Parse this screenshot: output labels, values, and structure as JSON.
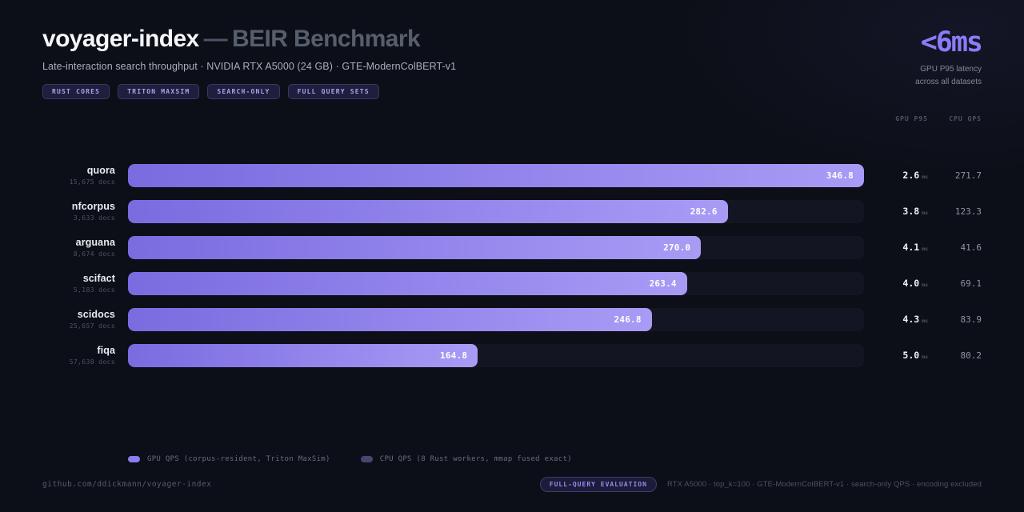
{
  "header": {
    "title": "voyager-index",
    "title_separator": "—",
    "title_suffix": "BEIR Benchmark",
    "subtitle": "Late-interaction search throughput · NVIDIA RTX A5000 (24 GB) · GTE-ModernColBERT-v1",
    "chips": [
      "RUST CORES",
      "TRITON MAXSIM",
      "SEARCH-ONLY",
      "FULL QUERY SETS"
    ],
    "highlight": {
      "value": "<6ms",
      "caption_line1": "GPU P95 latency",
      "caption_line2": "across all datasets"
    }
  },
  "columns": {
    "gpu": "GPU P95",
    "cpu": "CPU QPS"
  },
  "scale_max": 346.8,
  "rows": [
    {
      "name": "quora",
      "docs": "15,675 docs",
      "gpu_qps": 346.8,
      "gpu_qps_label": "346.8",
      "gpu_p95": "2.6",
      "gpu_p95_unit": "ms",
      "cpu_qps": "271.7"
    },
    {
      "name": "nfcorpus",
      "docs": "3,633 docs",
      "gpu_qps": 282.6,
      "gpu_qps_label": "282.6",
      "gpu_p95": "3.8",
      "gpu_p95_unit": "ms",
      "cpu_qps": "123.3"
    },
    {
      "name": "arguana",
      "docs": "8,674 docs",
      "gpu_qps": 270.0,
      "gpu_qps_label": "270.0",
      "gpu_p95": "4.1",
      "gpu_p95_unit": "ms",
      "cpu_qps": "41.6"
    },
    {
      "name": "scifact",
      "docs": "5,183 docs",
      "gpu_qps": 263.4,
      "gpu_qps_label": "263.4",
      "gpu_p95": "4.0",
      "gpu_p95_unit": "ms",
      "cpu_qps": "69.1"
    },
    {
      "name": "scidocs",
      "docs": "25,657 docs",
      "gpu_qps": 246.8,
      "gpu_qps_label": "246.8",
      "gpu_p95": "4.3",
      "gpu_p95_unit": "ms",
      "cpu_qps": "83.9"
    },
    {
      "name": "fiqa",
      "docs": "57,638 docs",
      "gpu_qps": 164.8,
      "gpu_qps_label": "164.8",
      "gpu_p95": "5.0",
      "gpu_p95_unit": "ms",
      "cpu_qps": "80.2"
    }
  ],
  "legend": [
    {
      "label": "GPU QPS (corpus-resident, Triton MaxSim)",
      "color": "#8b7cf0"
    },
    {
      "label": "CPU QPS (8 Rust workers, mmap fused exact)",
      "color": "#46476e"
    }
  ],
  "footer": {
    "left": "github.com/ddickmann/voyager-index",
    "badge": "FULL-QUERY EVALUATION",
    "note": "RTX A5000 · top_k=100 · GTE-ModernColBERT-v1 · search-only QPS · encoding excluded"
  },
  "colors": {
    "background": "#0c0f17",
    "accent": "#8b7cf8",
    "bar_gradient_start": "#7a6be0",
    "bar_gradient_end": "#a89bf5",
    "track": "#131622",
    "chip_text": "#a9a3ea"
  },
  "chart_data": {
    "type": "bar",
    "orientation": "horizontal",
    "title": "voyager-index — BEIR Benchmark",
    "subtitle": "Late-interaction search throughput · NVIDIA RTX A5000 (24 GB) · GTE-ModernColBERT-v1",
    "categories": [
      "quora",
      "nfcorpus",
      "arguana",
      "scifact",
      "scidocs",
      "fiqa"
    ],
    "category_sublabels": [
      "15,675 docs",
      "3,633 docs",
      "8,674 docs",
      "5,183 docs",
      "25,657 docs",
      "57,638 docs"
    ],
    "series": [
      {
        "name": "GPU QPS (corpus-resident, Triton MaxSim)",
        "values": [
          346.8,
          282.6,
          270.0,
          263.4,
          246.8,
          164.8
        ]
      },
      {
        "name": "CPU QPS (8 Rust workers, mmap fused exact)",
        "values": [
          271.7,
          123.3,
          41.6,
          69.1,
          83.9,
          80.2
        ]
      }
    ],
    "extra_columns": {
      "GPU P95 (ms)": [
        2.6,
        3.8,
        4.1,
        4.0,
        4.3,
        5.0
      ]
    },
    "xlim": [
      0,
      346.8
    ],
    "grid": false,
    "legend_position": "bottom"
  }
}
